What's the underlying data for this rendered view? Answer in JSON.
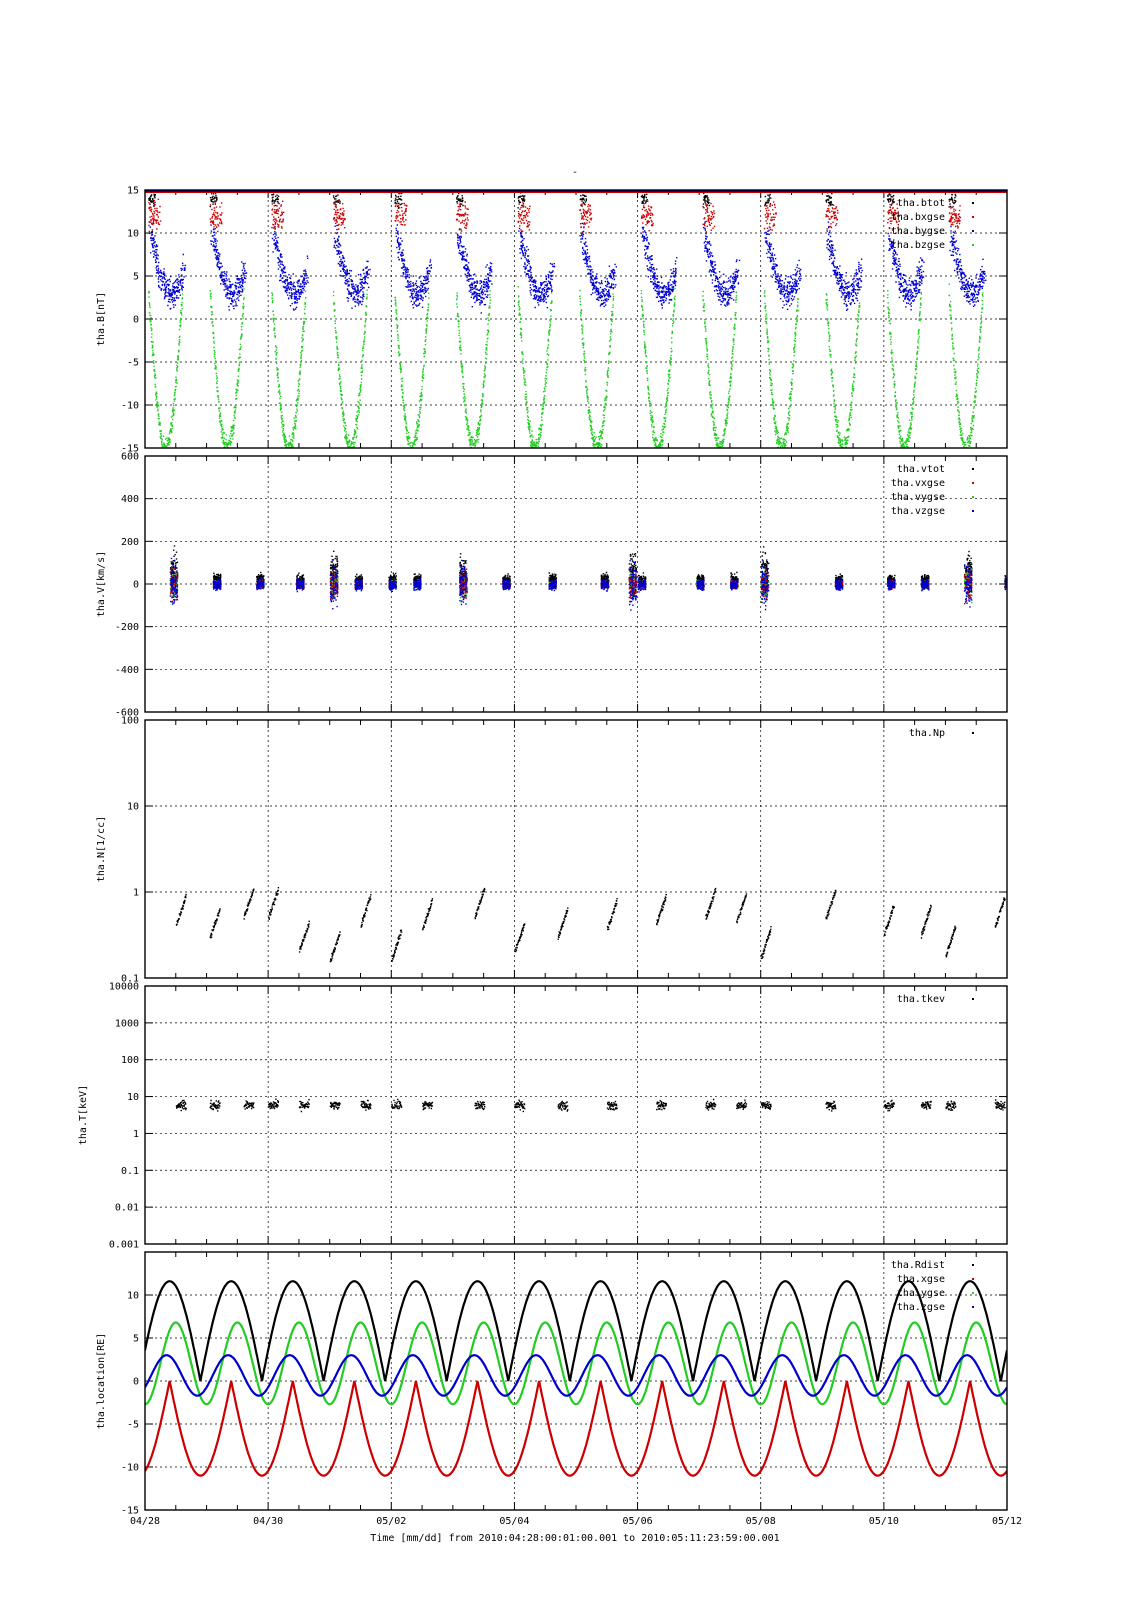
{
  "figure": {
    "title": "-",
    "xlabel": "Time [mm/dd]  from 2010:04:28:00:01:00.001  to  2010:05:11:23:59:00.001",
    "x_tick_labels": [
      "04/28",
      "04/30",
      "05/02",
      "05/04",
      "05/06",
      "05/08",
      "05/10",
      "05/12"
    ]
  },
  "colors": {
    "black": "#000000",
    "red": "#cc0000",
    "green": "#22cc22",
    "blue": "#0000cc"
  },
  "chart_data": [
    {
      "type": "scatter",
      "ylabel": "tha.B[nT]",
      "ylim": [
        -15,
        15
      ],
      "yscale": "linear",
      "yticks": [
        -15,
        -10,
        -5,
        0,
        5,
        10,
        15
      ],
      "ytick_labels": [
        "-15",
        "-10",
        "-5",
        "0",
        "5",
        "10",
        "15"
      ],
      "x_range_days": [
        0,
        14
      ],
      "grid": true,
      "legend_position": "top-right",
      "series": [
        {
          "name": "tha.btot",
          "color": "black",
          "values_note": ""
        },
        {
          "name": "tha.bxgse",
          "color": "red"
        },
        {
          "name": "tha.bygse",
          "color": "blue"
        },
        {
          "name": "tha.bzgse",
          "color": "green"
        }
      ]
    },
    {
      "type": "scatter",
      "ylabel": "tha.V[km/s]",
      "ylim": [
        -600,
        600
      ],
      "yscale": "linear",
      "yticks": [
        -600,
        -400,
        -200,
        0,
        200,
        400,
        600
      ],
      "ytick_labels": [
        "-600",
        "-400",
        "-200",
        "0",
        "200",
        "400",
        "600"
      ],
      "x_range_days": [
        0,
        14
      ],
      "grid": true,
      "legend_position": "top-right",
      "series": [
        {
          "name": "tha.vtot",
          "color": "black"
        },
        {
          "name": "tha.vxgse",
          "color": "red"
        },
        {
          "name": "tha.vygse",
          "color": "green"
        },
        {
          "name": "tha.vzgse",
          "color": "blue"
        }
      ]
    },
    {
      "type": "scatter",
      "ylabel": "tha.N[1/cc]",
      "ylim": [
        0.1,
        100
      ],
      "yscale": "log",
      "yticks": [
        0.1,
        1,
        10,
        100
      ],
      "ytick_labels": [
        "0.1",
        "1",
        "10",
        "100"
      ],
      "x_range_days": [
        0,
        14
      ],
      "grid": true,
      "legend_position": "top-right",
      "series": [
        {
          "name": "tha.Np",
          "color": "black"
        }
      ]
    },
    {
      "type": "scatter",
      "ylabel": "tha.T[keV]",
      "ylim": [
        0.001,
        10000
      ],
      "yscale": "log",
      "yticks": [
        0.001,
        0.01,
        0.1,
        1,
        10,
        100,
        1000,
        10000
      ],
      "ytick_labels": [
        "0.001",
        "0.01",
        "0.1",
        "1",
        "10",
        "100",
        "1000",
        "10000"
      ],
      "x_range_days": [
        0,
        14
      ],
      "grid": true,
      "legend_position": "top-right",
      "series": [
        {
          "name": "tha.tkev",
          "color": "black"
        }
      ]
    },
    {
      "type": "line",
      "ylabel": "tha.location[RE]",
      "ylim": [
        -15,
        15
      ],
      "yscale": "linear",
      "yticks": [
        -15,
        -10,
        -5,
        0,
        5,
        10
      ],
      "ytick_labels": [
        "-15",
        "-10",
        "-5",
        "0",
        "5",
        "10"
      ],
      "x_range_days": [
        0,
        14
      ],
      "grid": true,
      "legend_position": "top-right",
      "orbit_period_days": 1.0,
      "series": [
        {
          "name": "tha.Rdist",
          "color": "black",
          "min": 0.0,
          "max": 11.6
        },
        {
          "name": "tha.xgse",
          "color": "red",
          "min": -11.0,
          "max": 0.0
        },
        {
          "name": "tha.ygse",
          "color": "green",
          "min": -2.7,
          "max": 6.8
        },
        {
          "name": "tha.zgse",
          "color": "blue",
          "min": -1.7,
          "max": 3.0
        }
      ]
    }
  ]
}
